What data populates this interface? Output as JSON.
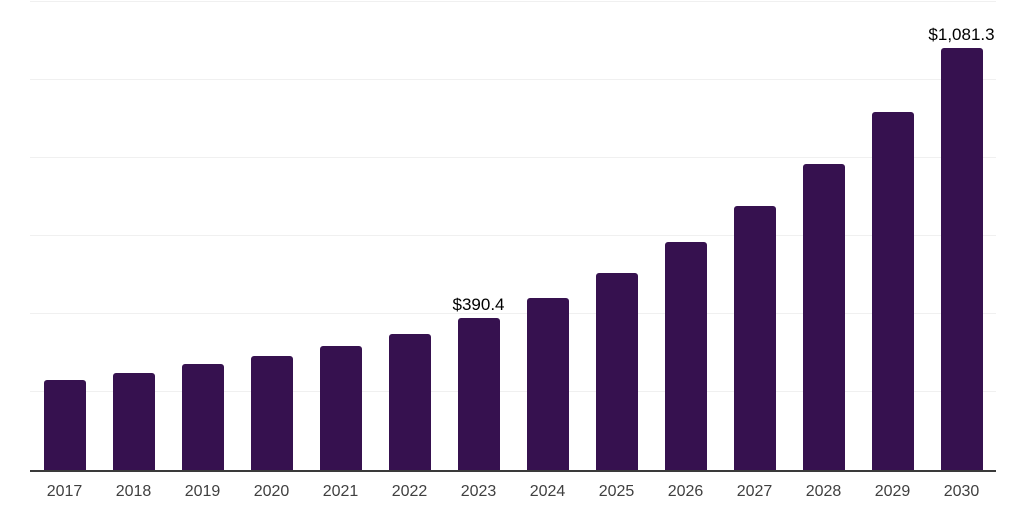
{
  "chart_data": {
    "type": "bar",
    "title": "",
    "xlabel": "",
    "ylabel": "",
    "legend": "none",
    "grid": true,
    "ylim": [
      0,
      1200
    ],
    "gridline_step": 200,
    "categories": [
      "2017",
      "2018",
      "2019",
      "2020",
      "2021",
      "2022",
      "2023",
      "2024",
      "2025",
      "2026",
      "2027",
      "2028",
      "2029",
      "2030"
    ],
    "values": [
      230.2,
      250.0,
      271.4,
      292.8,
      318.2,
      348.5,
      390.4,
      441.0,
      505.0,
      583.8,
      676.2,
      785.8,
      918.6,
      1081.3
    ],
    "value_labels": [
      "",
      "",
      "",
      "",
      "",
      "",
      "$390.4",
      "",
      "",
      "",
      "",
      "",
      "",
      "$1,081.3"
    ]
  },
  "colors": {
    "bar": "#36114f",
    "gridline": "#f0f0f0",
    "axis_line": "#3a3a3a",
    "value_label": "#000000",
    "tick_label": "#404040",
    "background": "#ffffff"
  }
}
